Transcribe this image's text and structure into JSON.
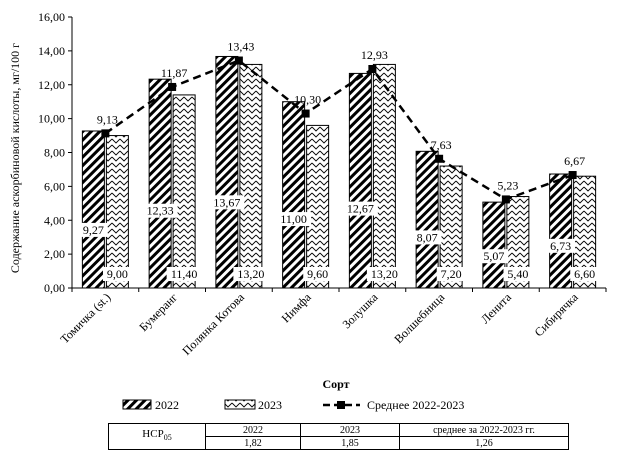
{
  "chart_data": {
    "type": "bar",
    "ylabel": "Содержание аскорбиновой кислоты, мг/100 г",
    "xlabel": "Сорт",
    "ylim": [
      0,
      16
    ],
    "yticks": [
      "0,00",
      "2,00",
      "4,00",
      "6,00",
      "8,00",
      "10,00",
      "12,00",
      "14,00",
      "16,00"
    ],
    "categories": [
      "Томичка (st.)",
      "Бумеранг",
      "Полянка Котова",
      "Нимфа",
      "Золушка",
      "Волшебница",
      "Ленита",
      "Сибирячка"
    ],
    "series": [
      {
        "name": "2022",
        "kind": "bar",
        "pattern": "diagonal-hatch",
        "values": [
          9.27,
          12.33,
          13.67,
          11.0,
          12.67,
          8.07,
          5.07,
          6.73
        ],
        "labels": [
          "9,27",
          "12,33",
          "13,67",
          "11,00",
          "12,67",
          "8,07",
          "5,07",
          "6,73"
        ]
      },
      {
        "name": "2023",
        "kind": "bar",
        "pattern": "zigzag",
        "values": [
          9.0,
          11.4,
          13.2,
          9.6,
          13.2,
          7.2,
          5.4,
          6.6
        ],
        "labels": [
          "9,00",
          "11,40",
          "13,20",
          "9,60",
          "13,20",
          "7,20",
          "5,40",
          "6,60"
        ]
      },
      {
        "name": "Среднее 2022-2023",
        "kind": "line",
        "style": "dashed",
        "marker": "square",
        "values": [
          9.13,
          11.87,
          13.43,
          10.3,
          12.93,
          7.63,
          5.23,
          6.67
        ],
        "labels": [
          "9,13",
          "11,87",
          "13,43",
          "10,30",
          "12,93",
          "7,63",
          "5,23",
          "6,67"
        ]
      }
    ],
    "grid": false,
    "legend": "bottom"
  },
  "hcp": {
    "label": "НСР",
    "label_sub": "05",
    "headers": [
      "2022",
      "2023",
      "среднее за 2022-2023 гг."
    ],
    "values": [
      "1,82",
      "1,85",
      "1,26"
    ]
  }
}
